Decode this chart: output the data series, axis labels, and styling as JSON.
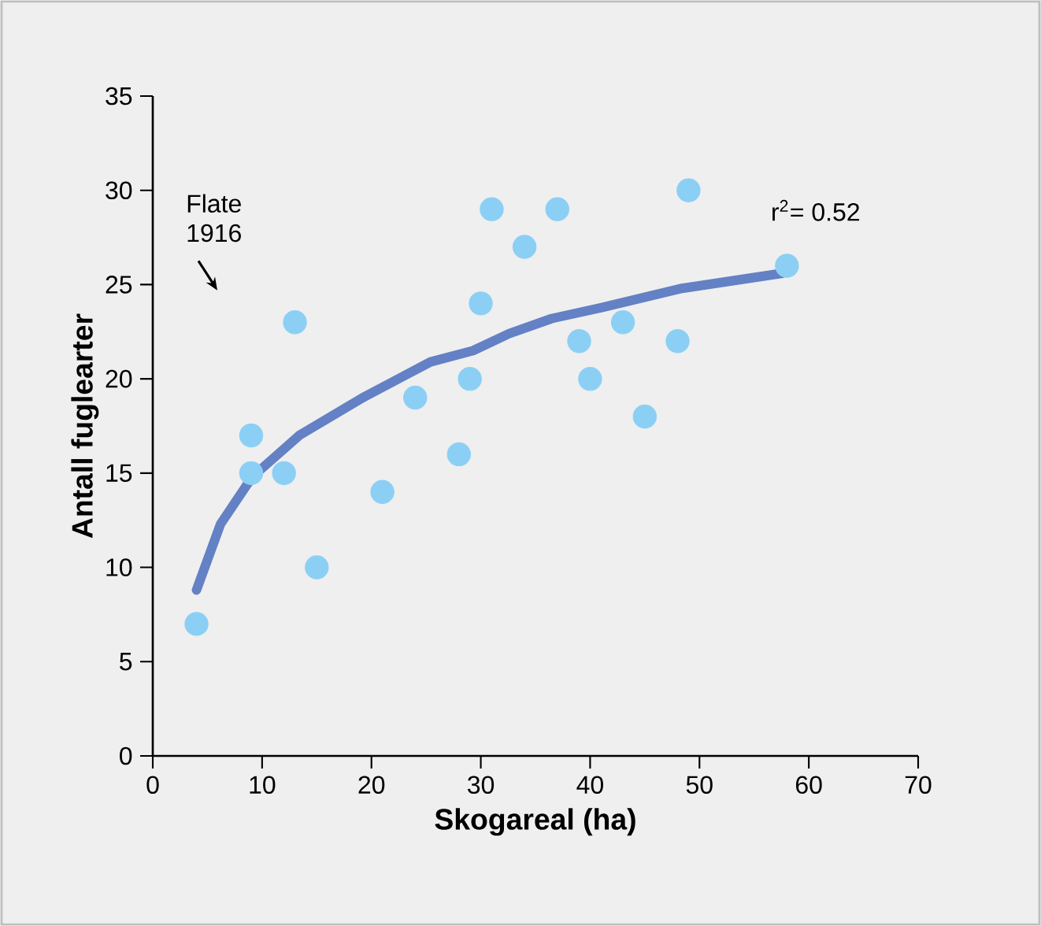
{
  "chart_data": {
    "type": "scatter",
    "xlabel": "Skogareal (ha)",
    "ylabel": "Antall fuglearter",
    "xlim": [
      0,
      70
    ],
    "ylim": [
      0,
      35
    ],
    "xticks": [
      0,
      10,
      20,
      30,
      40,
      50,
      60,
      70
    ],
    "yticks": [
      0,
      5,
      10,
      15,
      20,
      25,
      30,
      35
    ],
    "grid": false,
    "series": [
      {
        "type": "scatter",
        "marker": "circle",
        "color": "#8ccff5",
        "x": [
          4,
          9,
          9,
          12,
          13,
          15,
          21,
          24,
          28,
          29,
          30,
          31,
          34,
          37,
          39,
          40,
          43,
          45,
          48,
          49,
          58
        ],
        "values": [
          7,
          15,
          17,
          15,
          23,
          10,
          14,
          19,
          16,
          20,
          24,
          29,
          27,
          29,
          22,
          20,
          23,
          18,
          22,
          30,
          26
        ]
      },
      {
        "type": "line",
        "marker": "none",
        "color": "#6381c4",
        "x": [
          4,
          6.2,
          9.1,
          13.4,
          19.2,
          25.4,
          29.3,
          32.6,
          36.5,
          41.2,
          48.4,
          57.6
        ],
        "values": [
          8.8,
          12.3,
          14.8,
          17.0,
          19.0,
          20.9,
          21.5,
          22.4,
          23.2,
          23.8,
          24.8,
          25.6
        ]
      }
    ],
    "annotations": [
      "Flate 1916",
      "r$^{2}$= 0.52"
    ]
  }
}
